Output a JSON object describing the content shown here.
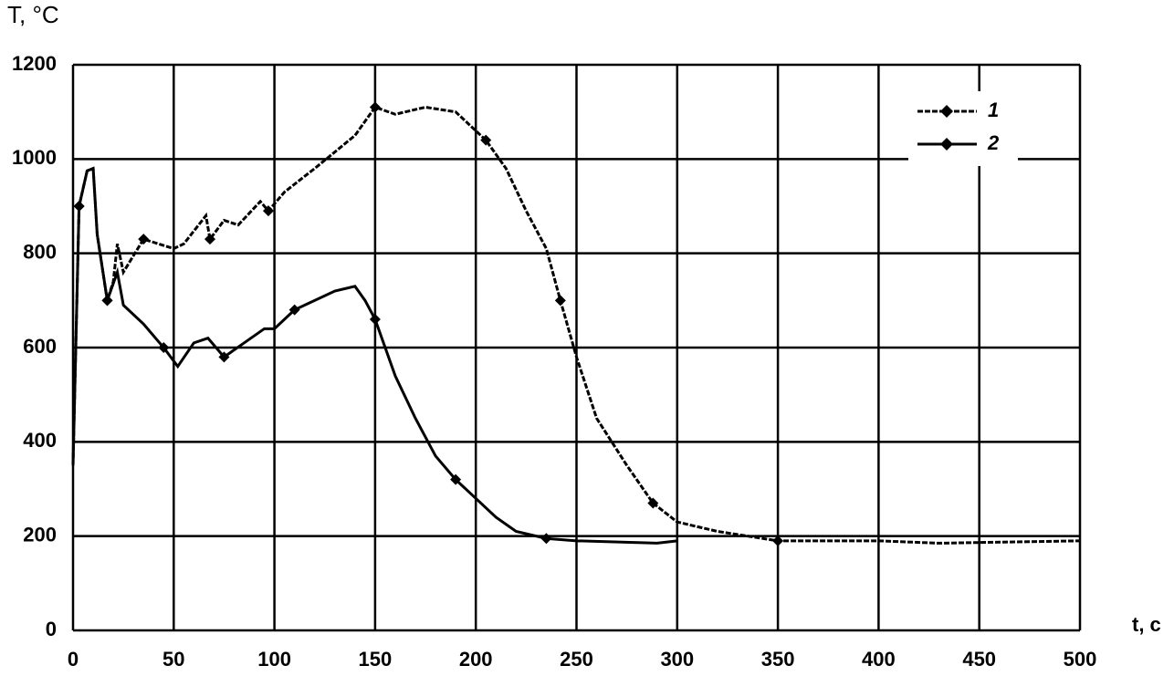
{
  "chart_data": {
    "type": "line",
    "y_label": "T, °C",
    "x_label": "t, c",
    "xlim": [
      0,
      500
    ],
    "ylim": [
      0,
      1200
    ],
    "xticks": [
      0,
      50,
      100,
      150,
      200,
      250,
      300,
      350,
      400,
      450,
      500
    ],
    "yticks": [
      0,
      200,
      400,
      600,
      800,
      1000,
      1200
    ],
    "grid": true,
    "legend": "upper right",
    "series": [
      {
        "name": "1",
        "color": "#000",
        "dash": true,
        "x": [
          0,
          3,
          7,
          10,
          12,
          17,
          20,
          22,
          25,
          35,
          50,
          55,
          66,
          68,
          75,
          82,
          93,
          97,
          105,
          120,
          140,
          150,
          160,
          175,
          190,
          205,
          215,
          225,
          235,
          242,
          250,
          260,
          275,
          288,
          300,
          320,
          335,
          350,
          400,
          430,
          500
        ],
        "values": [
          350,
          900,
          975,
          980,
          840,
          700,
          740,
          820,
          760,
          830,
          810,
          820,
          880,
          830,
          870,
          860,
          910,
          890,
          930,
          980,
          1050,
          1110,
          1095,
          1110,
          1100,
          1040,
          980,
          890,
          810,
          700,
          580,
          450,
          350,
          270,
          230,
          210,
          200,
          190,
          190,
          185,
          190
        ]
      },
      {
        "name": "2",
        "color": "#000",
        "dash": false,
        "x": [
          0,
          3,
          7,
          10,
          12,
          17,
          22,
          25,
          35,
          45,
          52,
          60,
          67,
          75,
          85,
          95,
          100,
          110,
          130,
          140,
          145,
          150,
          160,
          170,
          180,
          190,
          200,
          210,
          220,
          235,
          250,
          290,
          300
        ],
        "values": [
          350,
          900,
          975,
          980,
          840,
          700,
          760,
          690,
          650,
          600,
          560,
          610,
          620,
          580,
          610,
          640,
          640,
          680,
          720,
          730,
          700,
          660,
          540,
          450,
          370,
          320,
          280,
          240,
          210,
          195,
          190,
          185,
          190
        ]
      }
    ]
  }
}
